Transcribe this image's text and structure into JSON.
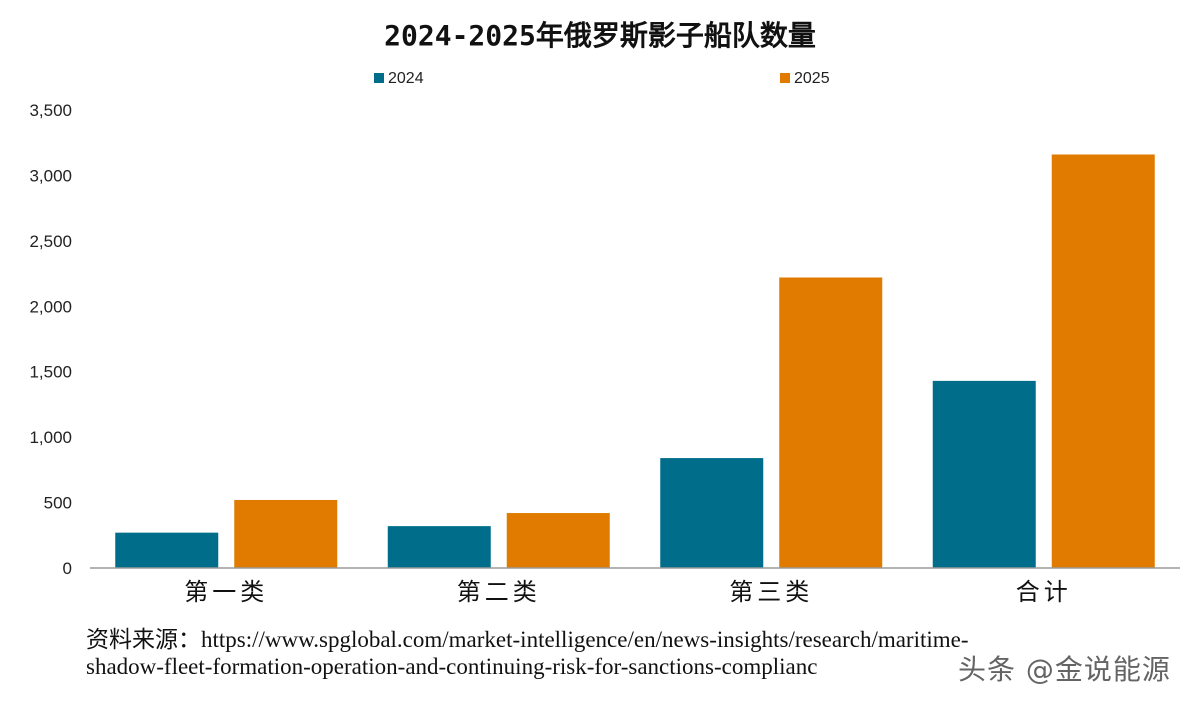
{
  "chart_data": {
    "type": "bar",
    "title": "2024-2025年俄罗斯影子船队数量",
    "categories": [
      "第一类",
      "第二类",
      "第三类",
      "合计"
    ],
    "series": [
      {
        "name": "2024",
        "color": "#006D8B",
        "values": [
          270,
          320,
          840,
          1430
        ]
      },
      {
        "name": "2025",
        "color": "#E07B00",
        "values": [
          520,
          420,
          2220,
          3160
        ]
      }
    ],
    "ylim": [
      0,
      3500
    ],
    "yticks": [
      0,
      500,
      1000,
      1500,
      2000,
      2500,
      3000,
      3500
    ],
    "ytick_labels": [
      "0",
      "500",
      "1,000",
      "1,500",
      "2,000",
      "2,500",
      "3,000",
      "3,500"
    ],
    "xlabel": "",
    "ylabel": "",
    "legend_position": "top",
    "grid": false
  },
  "source": {
    "line1": "资料来源：https://www.spglobal.com/market-intelligence/en/news-insights/research/maritime-",
    "line2": "shadow-fleet-formation-operation-and-continuing-risk-for-sanctions-complianc"
  },
  "watermark": "头条 @金说能源"
}
